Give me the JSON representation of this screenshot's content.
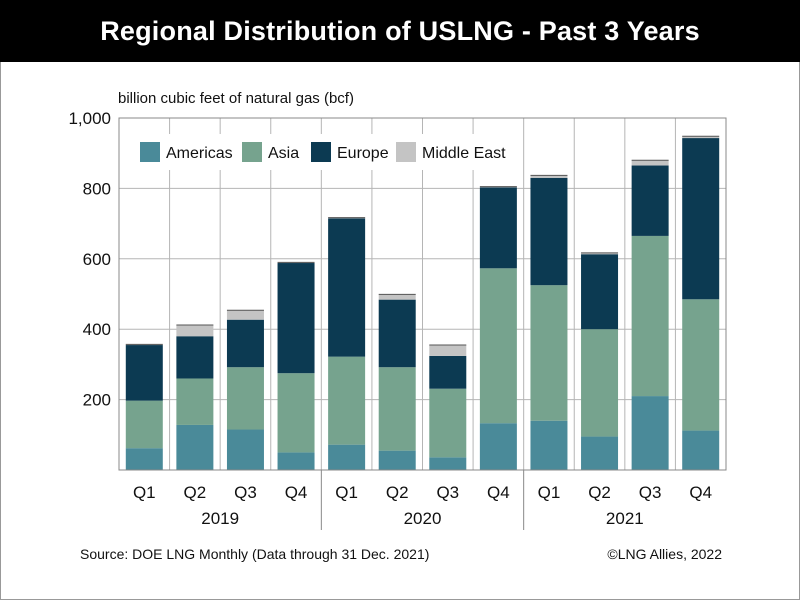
{
  "title": "Regional Distribution of USLNG - Past 3 Years",
  "unit_label": "billion cubic feet of natural gas (bcf)",
  "source": "Source: DOE LNG Monthly (Data through 31 Dec.  2021)",
  "credit": "©LNG Allies, 2022",
  "colors": {
    "Americas": "#4a8a99",
    "Asia": "#76a38e",
    "Europe": "#0c3a52",
    "Middle East": "#c4c4c4",
    "grid": "#b5b5b5",
    "axis": "#555555"
  },
  "chart_data": {
    "type": "bar",
    "stacked": true,
    "title": "Regional Distribution of USLNG - Past 3 Years",
    "ylabel": "billion cubic feet of natural gas (bcf)",
    "xlabel": "",
    "ylim": [
      0,
      1000
    ],
    "yticks": [
      200,
      400,
      600,
      800,
      1000
    ],
    "ytick_labels": [
      "200",
      "400",
      "600",
      "800",
      "1,000"
    ],
    "categories": [
      "Q1",
      "Q2",
      "Q3",
      "Q4",
      "Q1",
      "Q2",
      "Q3",
      "Q4",
      "Q1",
      "Q2",
      "Q3",
      "Q4"
    ],
    "groups": [
      {
        "label": "2019",
        "count": 4
      },
      {
        "label": "2020",
        "count": 4
      },
      {
        "label": "2021",
        "count": 4
      }
    ],
    "legend": [
      "Americas",
      "Asia",
      "Europe",
      "Middle East"
    ],
    "legend_position": "top",
    "grid": true,
    "series": [
      {
        "name": "Americas",
        "values": [
          62,
          128,
          115,
          50,
          72,
          55,
          36,
          133,
          140,
          95,
          210,
          112
        ]
      },
      {
        "name": "Asia",
        "values": [
          135,
          132,
          177,
          225,
          250,
          237,
          195,
          440,
          385,
          305,
          455,
          373
        ]
      },
      {
        "name": "Europe",
        "values": [
          158,
          120,
          135,
          313,
          393,
          192,
          93,
          230,
          305,
          213,
          200,
          458
        ]
      },
      {
        "name": "Middle East",
        "values": [
          2,
          32,
          27,
          2,
          2,
          15,
          31,
          2,
          7,
          4,
          15,
          5
        ]
      }
    ]
  }
}
